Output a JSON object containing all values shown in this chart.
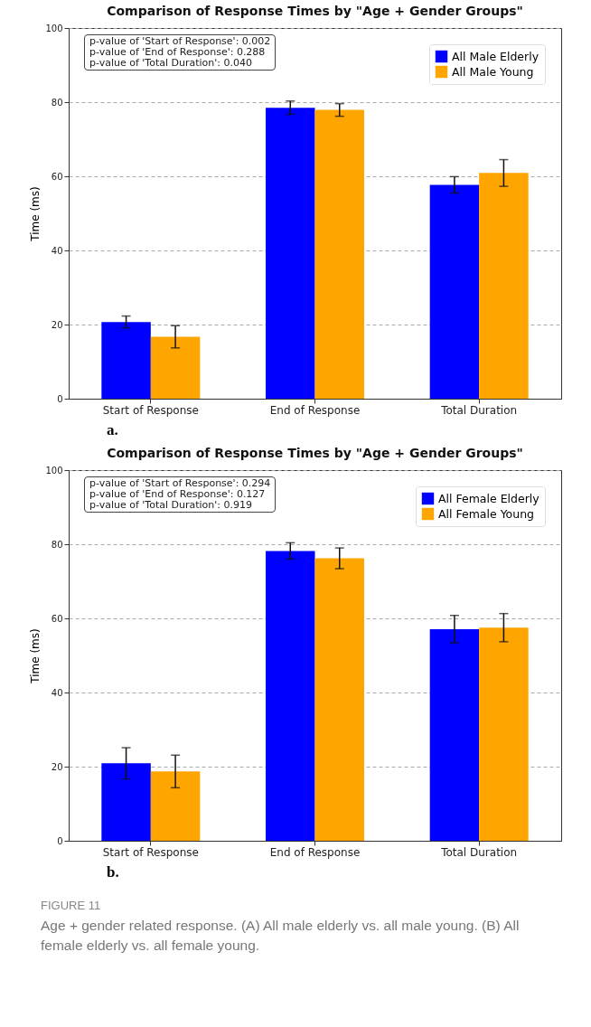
{
  "chart_data": [
    {
      "type": "bar",
      "title": "Comparison of Response Times by \"Age + Gender Groups\"",
      "ylabel": "Time (ms)",
      "categories": [
        "Start of Response",
        "End of Response",
        "Total Duration"
      ],
      "series": [
        {
          "name": "All Male Elderly",
          "color": "#0000ff",
          "values": [
            20.7,
            78.5,
            57.7
          ],
          "errors": [
            1.6,
            1.8,
            2.2
          ]
        },
        {
          "name": "All Male Young",
          "color": "#ffa500",
          "values": [
            16.7,
            77.9,
            60.9
          ],
          "errors": [
            3.0,
            1.7,
            3.6
          ]
        }
      ],
      "ylim": [
        0,
        100
      ],
      "yticks": [
        0,
        20,
        40,
        60,
        80,
        100
      ],
      "grid": "y",
      "legend": "top right",
      "annotations": [
        "p-value of 'Start of Response': 0.002",
        "p-value of 'End of Response': 0.288",
        "p-value of 'Total Duration': 0.040",
        "a."
      ]
    },
    {
      "type": "bar",
      "title": "Comparison of Response Times by \"Age + Gender Groups\"",
      "ylabel": "Time (ms)",
      "categories": [
        "Start of Response",
        "End of Response",
        "Total Duration"
      ],
      "series": [
        {
          "name": "All Female Elderly",
          "color": "#0000ff",
          "values": [
            20.9,
            78.2,
            57.1
          ],
          "errors": [
            4.2,
            2.2,
            3.7
          ]
        },
        {
          "name": "All Female Young",
          "color": "#ffa500",
          "values": [
            18.7,
            76.2,
            57.5
          ],
          "errors": [
            4.4,
            2.8,
            3.8
          ]
        }
      ],
      "ylim": [
        0,
        100
      ],
      "yticks": [
        0,
        20,
        40,
        60,
        80,
        100
      ],
      "grid": "y",
      "legend": "top right",
      "annotations": [
        "p-value of 'Start of Response': 0.294",
        "p-value of 'End of Response': 0.127",
        "p-value of 'Total Duration': 0.919",
        "b.",
        "FIGURE 11",
        "Age + gender related response. (A) All male elderly vs. all male young. (B) All female elderly vs. all female young."
      ]
    }
  ]
}
